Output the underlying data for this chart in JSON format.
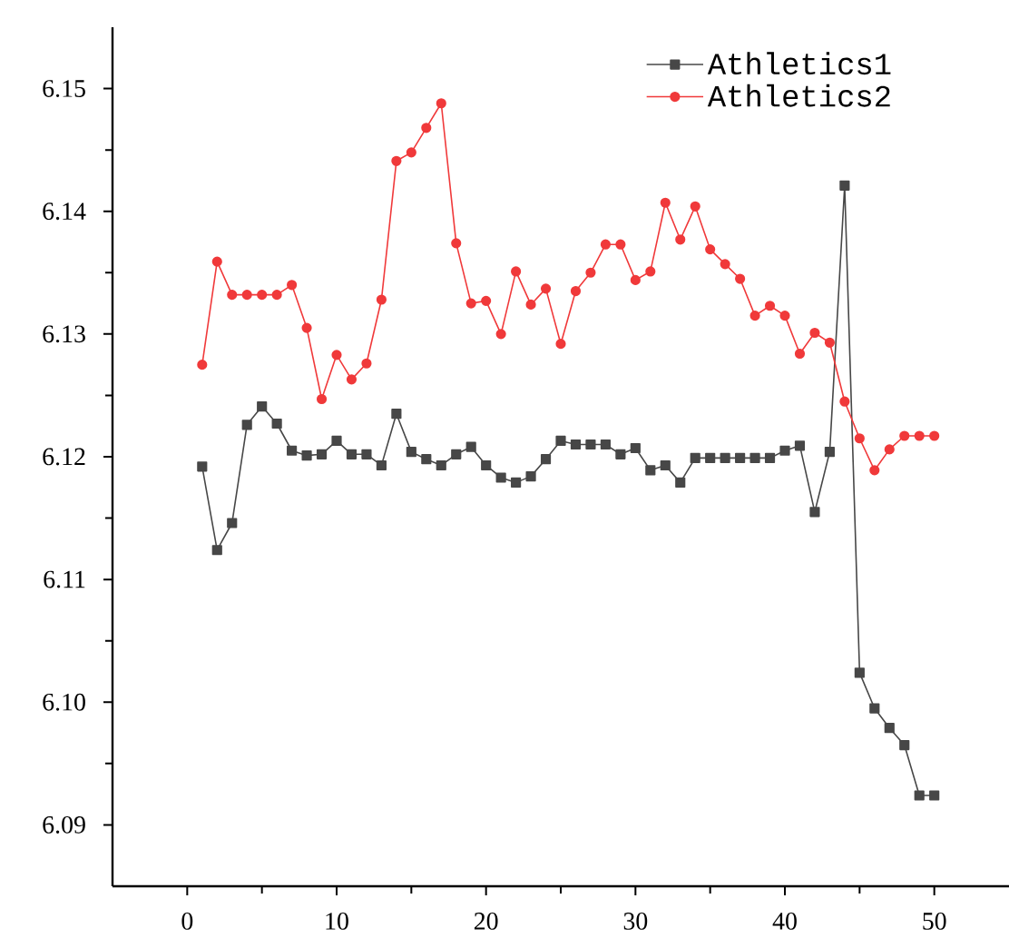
{
  "chart_data": {
    "type": "line",
    "x": [
      1,
      2,
      3,
      4,
      5,
      6,
      7,
      8,
      9,
      10,
      11,
      12,
      13,
      14,
      15,
      16,
      17,
      18,
      19,
      20,
      21,
      22,
      23,
      24,
      25,
      26,
      27,
      28,
      29,
      30,
      31,
      32,
      33,
      34,
      35,
      36,
      37,
      38,
      39,
      40,
      41,
      42,
      43,
      44,
      45,
      46,
      47,
      48,
      49,
      50
    ],
    "series": [
      {
        "name": "Athletics1",
        "color": "#474747",
        "marker": "square",
        "values": [
          6.1192,
          6.1124,
          6.1146,
          6.1226,
          6.1241,
          6.1227,
          6.1205,
          6.1201,
          6.1202,
          6.1213,
          6.1202,
          6.1202,
          6.1193,
          6.1235,
          6.1204,
          6.1198,
          6.1193,
          6.1202,
          6.1208,
          6.1193,
          6.1183,
          6.1179,
          6.1184,
          6.1198,
          6.1213,
          6.121,
          6.121,
          6.121,
          6.1202,
          6.1207,
          6.1189,
          6.1193,
          6.1179,
          6.1199,
          6.1199,
          6.1199,
          6.1199,
          6.1199,
          6.1199,
          6.1205,
          6.1209,
          6.1155,
          6.1204,
          6.1421,
          6.1024,
          6.0995,
          6.0979,
          6.0965,
          6.0924,
          6.0924
        ]
      },
      {
        "name": "Athletics2",
        "color": "#f0393a",
        "marker": "circle",
        "values": [
          6.1275,
          6.1359,
          6.1332,
          6.1332,
          6.1332,
          6.1332,
          6.134,
          6.1305,
          6.1247,
          6.1283,
          6.1263,
          6.1276,
          6.1328,
          6.1441,
          6.1448,
          6.1468,
          6.1488,
          6.1374,
          6.1325,
          6.1327,
          6.13,
          6.1351,
          6.1324,
          6.1337,
          6.1292,
          6.1335,
          6.135,
          6.1373,
          6.1373,
          6.1344,
          6.1351,
          6.1407,
          6.1377,
          6.1404,
          6.1369,
          6.1357,
          6.1345,
          6.1315,
          6.1323,
          6.1315,
          6.1284,
          6.1301,
          6.1293,
          6.1245,
          6.1215,
          6.1189,
          6.1206,
          6.1217,
          6.1217,
          6.1217
        ]
      }
    ],
    "xlim": [
      -5,
      55
    ],
    "xticks": [
      0,
      10,
      20,
      30,
      40,
      50
    ],
    "ylim": [
      6.085,
      6.155
    ],
    "yticks": [
      {
        "value": 6.09,
        "label": "6.09"
      },
      {
        "value": 6.1,
        "label": "6.10"
      },
      {
        "value": 6.11,
        "label": "6.11"
      },
      {
        "value": 6.12,
        "label": "6.12"
      },
      {
        "value": 6.13,
        "label": "6.13"
      },
      {
        "value": 6.14,
        "label": "6.14"
      },
      {
        "value": 6.15,
        "label": "6.15"
      }
    ],
    "grid": false,
    "legend": "top right",
    "line_style": "solid"
  }
}
